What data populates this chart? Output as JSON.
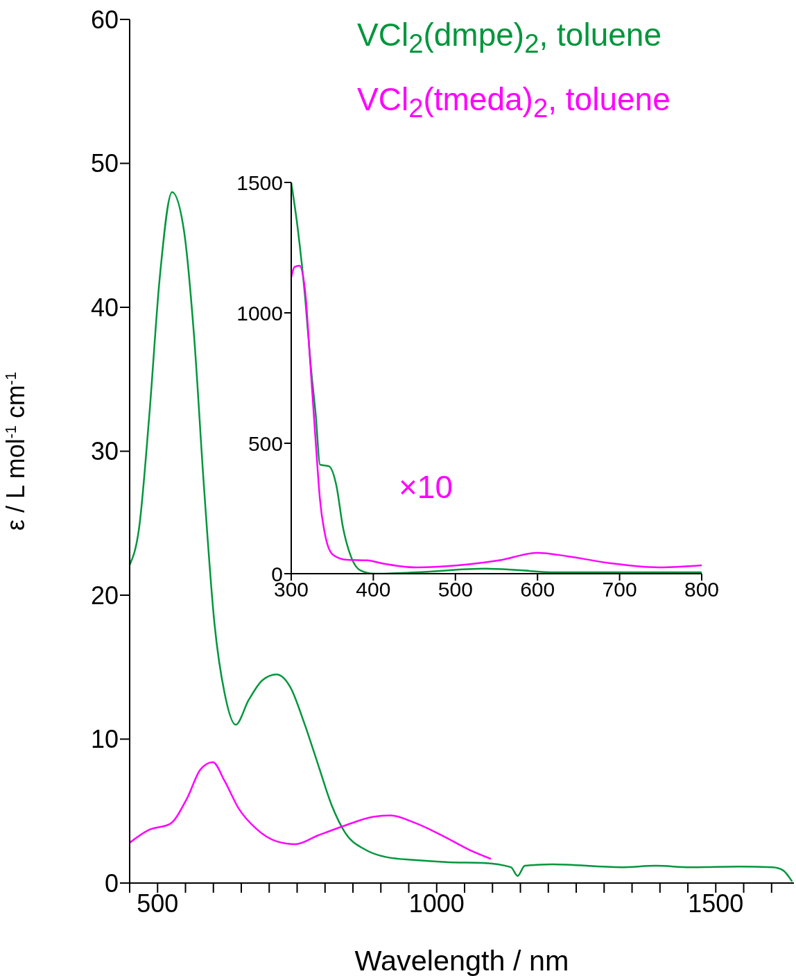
{
  "chart_data": [
    {
      "type": "line",
      "xlabel": "Wavelength / nm",
      "ylabel": "ε / L mol$^{-1}$ cm$^{-1}$",
      "xlim": [
        450,
        1640
      ],
      "ylim": [
        0,
        60
      ],
      "xticks": [
        {
          "value": 450,
          "label": null
        },
        500,
        {
          "value": 550,
          "label": null
        },
        {
          "value": 600,
          "label": null
        },
        {
          "value": 650,
          "label": null
        },
        {
          "value": 700,
          "label": null
        },
        {
          "value": 750,
          "label": null
        },
        {
          "value": 800,
          "label": null
        },
        {
          "value": 850,
          "label": null
        },
        {
          "value": 900,
          "label": null
        },
        {
          "value": 950,
          "label": null
        },
        1000,
        {
          "value": 1050,
          "label": null
        },
        {
          "value": 1100,
          "label": null
        },
        {
          "value": 1150,
          "label": null
        },
        {
          "value": 1200,
          "label": null
        },
        {
          "value": 1250,
          "label": null
        },
        {
          "value": 1300,
          "label": null
        },
        {
          "value": 1350,
          "label": null
        },
        {
          "value": 1400,
          "label": null
        },
        {
          "value": 1450,
          "label": null
        },
        1500,
        {
          "value": 1550,
          "label": null
        },
        {
          "value": 1600,
          "label": null
        }
      ],
      "yticks": [
        0,
        10,
        20,
        30,
        40,
        50,
        60
      ],
      "legend": "top right",
      "marker": "none",
      "line_style": "solid",
      "series": [
        {
          "name": "VCl$_{2}$(dmpe)$_{2}$, toluene",
          "color": "#00963c",
          "x": [
            450,
            467,
            485,
            504,
            526,
            547,
            565,
            583,
            602,
            620,
            640,
            663,
            688,
            713,
            738,
            762,
            787,
            812,
            836,
            873,
            910,
            960,
            1021,
            1083,
            1133,
            1145,
            1158,
            1207,
            1330,
            1393,
            1454,
            1541,
            1602,
            1620,
            1636
          ],
          "values": [
            22.1,
            24.7,
            32.4,
            42.1,
            48.0,
            45.4,
            38.2,
            27.6,
            18.0,
            13.2,
            11.0,
            12.7,
            14.1,
            14.5,
            13.6,
            11.2,
            8.3,
            5.4,
            3.5,
            2.3,
            1.8,
            1.6,
            1.45,
            1.4,
            1.1,
            0.5,
            1.2,
            1.3,
            1.1,
            1.2,
            1.1,
            1.15,
            1.1,
            0.9,
            0.15
          ]
        },
        {
          "name": "VCl$_{2}$(tmeda)$_{2}$, toluene",
          "color": "#ff00ff",
          "x": [
            450,
            485,
            522,
            553,
            577,
            599,
            620,
            645,
            676,
            713,
            747,
            787,
            836,
            886,
            917,
            960,
            1010,
            1059,
            1096
          ],
          "values": [
            2.8,
            3.7,
            4.1,
            5.9,
            7.9,
            8.4,
            7.1,
            5.2,
            3.8,
            2.9,
            2.7,
            3.3,
            4.0,
            4.6,
            4.7,
            4.2,
            3.3,
            2.3,
            1.7
          ]
        }
      ]
    },
    {
      "type": "line",
      "xlim": [
        300,
        800
      ],
      "ylim": [
        0,
        1500
      ],
      "xticks": [
        300,
        400,
        500,
        600,
        700,
        800
      ],
      "yticks": [
        0,
        500,
        1000,
        1500
      ],
      "marker": "none",
      "line_style": "solid",
      "annotations": [
        "×10"
      ],
      "series": [
        {
          "color": "#00963c",
          "x": [
            300,
            308,
            317,
            324,
            330,
            335,
            346,
            355,
            363,
            372,
            384,
            401,
            452,
            536,
            579,
            621,
            800
          ],
          "values": [
            1500,
            1322,
            1056,
            790,
            604,
            418,
            412,
            338,
            178,
            72,
            13,
            0,
            5,
            19,
            13,
            5,
            5
          ]
        },
        {
          "color": "#ff00ff",
          "x": [
            300,
            304,
            310,
            317,
            323,
            330,
            335,
            342,
            351,
            368,
            393,
            410,
            452,
            503,
            553,
            600,
            638,
            689,
            748,
            800
          ],
          "values": [
            1136,
            1176,
            1181,
            1082,
            816,
            497,
            285,
            138,
            72,
            53,
            51,
            40,
            24,
            32,
            51,
            80,
            66,
            40,
            24,
            32
          ]
        }
      ]
    }
  ]
}
